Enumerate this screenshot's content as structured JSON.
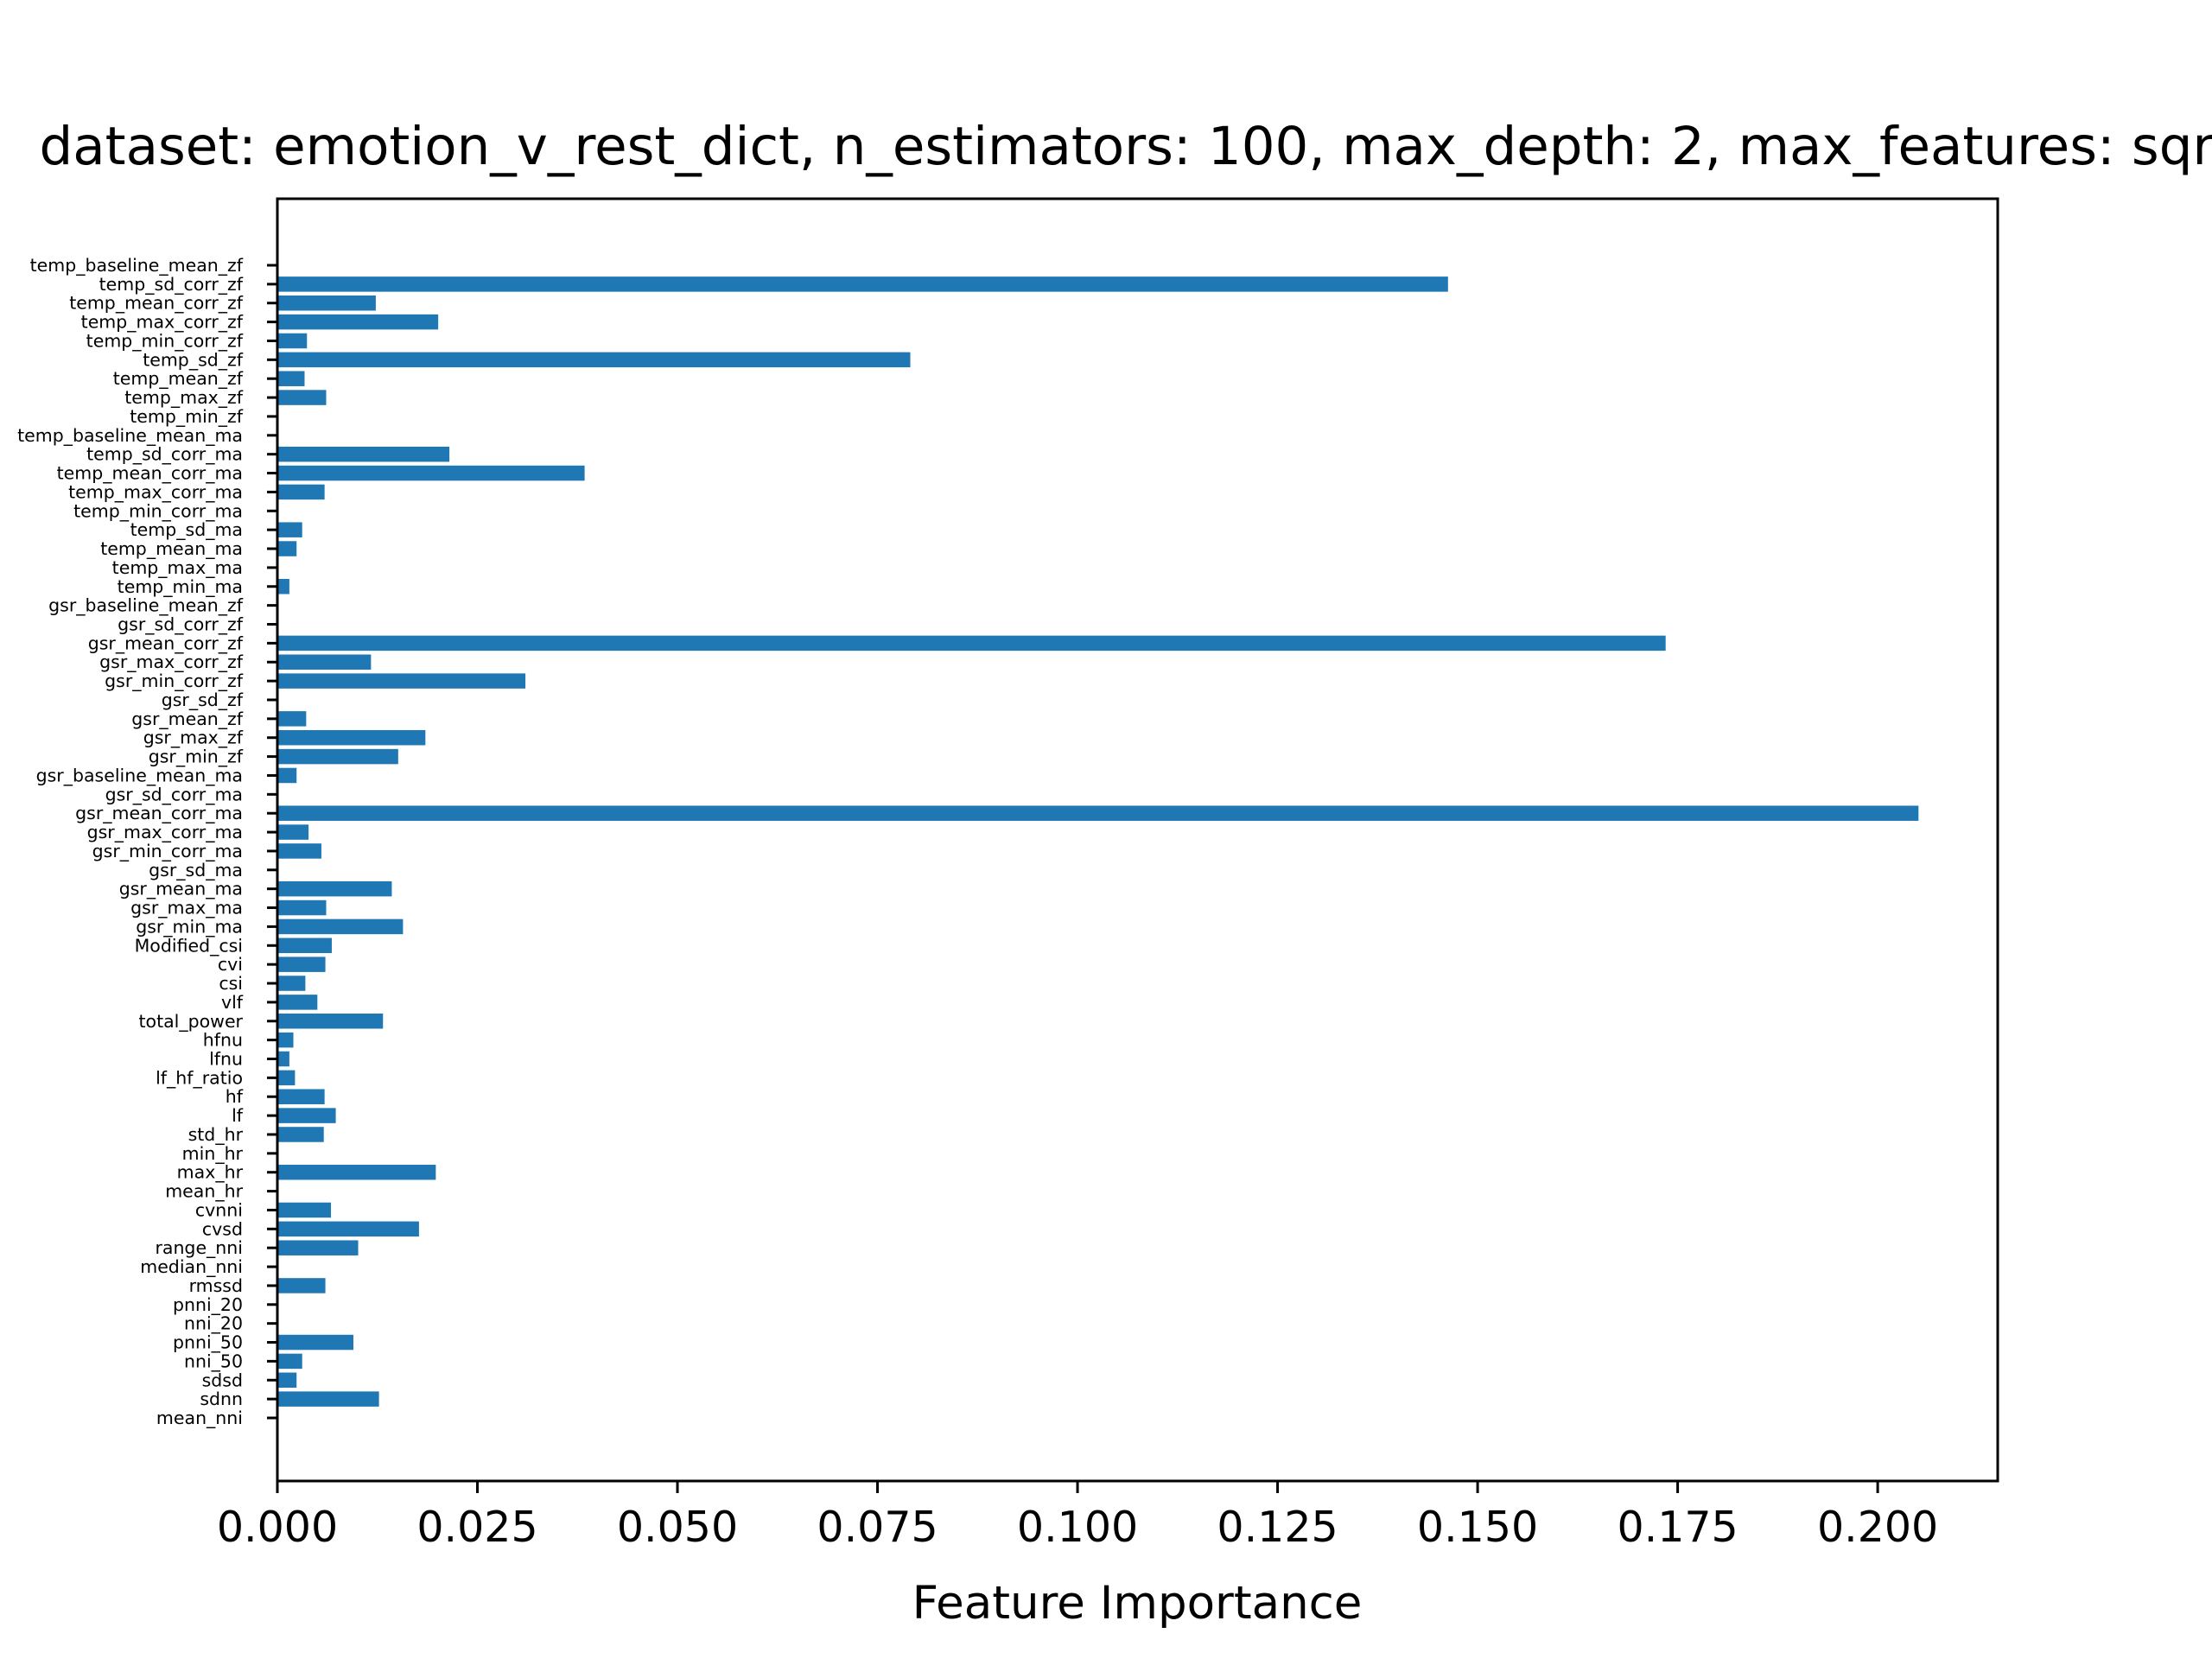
{
  "chart_data": {
    "type": "bar",
    "orientation": "horizontal",
    "title": "dataset: emotion_v_rest_dict, n_estimators: 100, max_depth: 2, max_features: sqrt",
    "xlabel": "Feature Importance",
    "ylabel": "",
    "xlim": [
      0,
      0.215
    ],
    "xticks": [
      0.0,
      0.025,
      0.05,
      0.075,
      0.1,
      0.125,
      0.15,
      0.175,
      0.2
    ],
    "xtick_labels": [
      "0.000",
      "0.025",
      "0.050",
      "0.075",
      "0.100",
      "0.125",
      "0.150",
      "0.175",
      "0.200"
    ],
    "grid": false,
    "legend": "none",
    "bar_color": "#1f77b4",
    "categories": [
      "temp_baseline_mean_zf",
      "temp_sd_corr_zf",
      "temp_mean_corr_zf",
      "temp_max_corr_zf",
      "temp_min_corr_zf",
      "temp_sd_zf",
      "temp_mean_zf",
      "temp_max_zf",
      "temp_min_zf",
      "temp_baseline_mean_ma",
      "temp_sd_corr_ma",
      "temp_mean_corr_ma",
      "temp_max_corr_ma",
      "temp_min_corr_ma",
      "temp_sd_ma",
      "temp_mean_ma",
      "temp_max_ma",
      "temp_min_ma",
      "gsr_baseline_mean_zf",
      "gsr_sd_corr_zf",
      "gsr_mean_corr_zf",
      "gsr_max_corr_zf",
      "gsr_min_corr_zf",
      "gsr_sd_zf",
      "gsr_mean_zf",
      "gsr_max_zf",
      "gsr_min_zf",
      "gsr_baseline_mean_ma",
      "gsr_sd_corr_ma",
      "gsr_mean_corr_ma",
      "gsr_max_corr_ma",
      "gsr_min_corr_ma",
      "gsr_sd_ma",
      "gsr_mean_ma",
      "gsr_max_ma",
      "gsr_min_ma",
      "Modified_csi",
      "cvi",
      "csi",
      "vlf",
      "total_power",
      "hfnu",
      "lfnu",
      "lf_hf_ratio",
      "hf",
      "lf",
      "std_hr",
      "min_hr",
      "max_hr",
      "mean_hr",
      "cvnni",
      "cvsd",
      "range_nni",
      "median_nni",
      "rmssd",
      "pnni_20",
      "nni_20",
      "pnni_50",
      "nni_50",
      "sdsd",
      "sdnn",
      "mean_nni"
    ],
    "values": [
      0.0,
      0.1463,
      0.0123,
      0.0201,
      0.0037,
      0.0791,
      0.0034,
      0.0061,
      0.0,
      0.0,
      0.0215,
      0.0384,
      0.0059,
      0.0,
      0.0031,
      0.0024,
      0.0,
      0.0015,
      0.0,
      0.0,
      0.1735,
      0.0117,
      0.031,
      0.0,
      0.0036,
      0.0185,
      0.0151,
      0.0024,
      0.0,
      0.2051,
      0.0039,
      0.0055,
      0.0,
      0.0143,
      0.0061,
      0.0157,
      0.0068,
      0.006,
      0.0035,
      0.005,
      0.0132,
      0.002,
      0.0015,
      0.0022,
      0.0059,
      0.0073,
      0.0058,
      0.0,
      0.0198,
      0.0,
      0.0067,
      0.0177,
      0.0101,
      0.0,
      0.006,
      0.0,
      0.0,
      0.0095,
      0.0031,
      0.0024,
      0.0127,
      0.0
    ]
  }
}
